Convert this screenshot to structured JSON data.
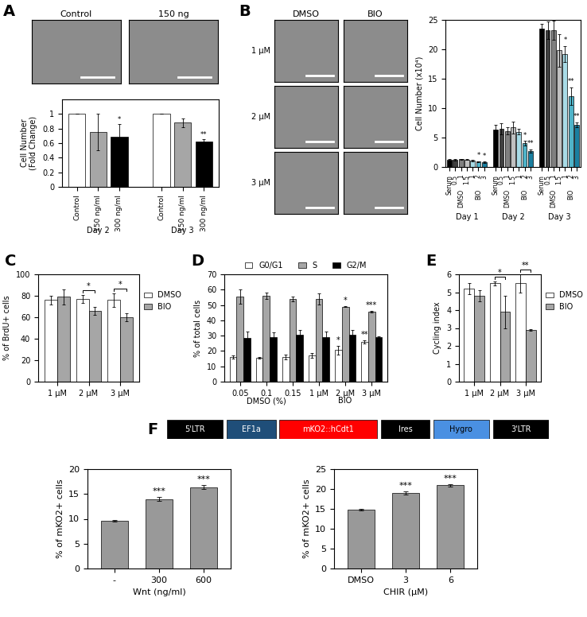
{
  "images": [
    {
      "panel": "A",
      "columns": [
        "Control",
        "150 ng"
      ]
    },
    {
      "panel": "B",
      "columns": [
        "DMSO",
        "BIO"
      ],
      "rows": [
        "1 μM",
        "2 μM",
        "3 μM"
      ]
    }
  ],
  "construct": {
    "panel": "F",
    "elements": [
      {
        "label": "5'LTR",
        "color": "#000000"
      },
      {
        "label": "EF1a",
        "color": "#1f4e79"
      },
      {
        "label": "mKO2::hCdt1",
        "color": "#ff0000"
      },
      {
        "label": "Ires",
        "color": "#000000"
      },
      {
        "label": "Hygro",
        "color": "#4a90e2"
      },
      {
        "label": "3'LTR",
        "color": "#000000"
      }
    ]
  },
  "chart_data": [
    {
      "type": "bar",
      "ylabel": "Cell Number\n(Fold Change)",
      "categories": [
        "Control",
        "150 ng/ml",
        "300 ng/ml"
      ],
      "colors": [
        "#ffffff",
        "#a6a6a6",
        "#000000"
      ],
      "groups": [
        {
          "label": "Day 2",
          "values": [
            1,
            0.75,
            0.69
          ],
          "errors": [
            0,
            0.25,
            0.17
          ],
          "significance": [
            null,
            null,
            "*"
          ]
        },
        {
          "label": "Day 3",
          "values": [
            1,
            0.88,
            0.62
          ],
          "errors": [
            0,
            0.06,
            0.03
          ],
          "significance": [
            null,
            null,
            "**"
          ]
        }
      ],
      "ylim": [
        0,
        1.2
      ],
      "yticks": [
        0,
        0.2,
        0.4,
        0.6,
        0.8,
        1
      ]
    },
    {
      "type": "bar",
      "ylabel": "Cell Number (x10⁴)",
      "categories": [
        "Serum",
        "0.5",
        "1",
        "1.5",
        "1",
        "2",
        "3"
      ],
      "colors": [
        "#000000",
        "#404040",
        "#808080",
        "#c0c0c0",
        "#a8dbe6",
        "#4fb3c8",
        "#1a7fa0"
      ],
      "subgroups": [
        {
          "label": "DMSO",
          "first": 1,
          "count": 3
        },
        {
          "label": "BIO",
          "first": 4,
          "count": 3
        }
      ],
      "groups": [
        {
          "label": "Day 1",
          "values": [
            1.2,
            1.2,
            1.3,
            1.25,
            1.1,
            0.9,
            0.8
          ],
          "errors": [
            0.1,
            0.1,
            0.1,
            0.1,
            0.1,
            0.1,
            0.1
          ],
          "significance": [
            null,
            null,
            null,
            null,
            null,
            "*",
            "*"
          ]
        },
        {
          "label": "Day 2",
          "values": [
            6.3,
            6.5,
            6.1,
            6.7,
            6.0,
            4.0,
            2.7
          ],
          "errors": [
            0.8,
            0.9,
            0.6,
            1.0,
            0.5,
            0.4,
            0.3
          ],
          "significance": [
            null,
            null,
            null,
            null,
            null,
            "*",
            "**"
          ]
        },
        {
          "label": "Day 3",
          "values": [
            23.5,
            23.2,
            23.2,
            19.8,
            19.2,
            12.0,
            7.2
          ],
          "errors": [
            0.8,
            1.5,
            1.6,
            2.8,
            1.4,
            1.5,
            0.4
          ],
          "significance": [
            null,
            null,
            null,
            null,
            "*",
            "**",
            "**"
          ]
        }
      ],
      "ylim": [
        0,
        25
      ],
      "yticks": [
        0,
        5,
        10,
        15,
        20,
        25
      ]
    },
    {
      "type": "bar",
      "panel": "C",
      "ylabel": "% of BrdU+ cells",
      "categories": [
        "1 μM",
        "2 μM",
        "3 μM"
      ],
      "series": [
        {
          "name": "DMSO",
          "color": "#ffffff",
          "values": [
            76,
            77,
            76
          ],
          "errors": [
            4,
            4,
            6
          ]
        },
        {
          "name": "BIO",
          "color": "#a6a6a6",
          "values": [
            79,
            66,
            60
          ],
          "errors": [
            7,
            4,
            4
          ]
        }
      ],
      "comparisons": [
        null,
        "*",
        "*"
      ],
      "legend": "right",
      "ylim": [
        0,
        100
      ],
      "yticks": [
        0,
        20,
        40,
        60,
        80,
        100
      ]
    },
    {
      "type": "bar",
      "panel": "D",
      "ylabel": "% of total cells",
      "categories": [
        "0.05",
        "0.1",
        "0.15",
        "1 μM",
        "2 μM",
        "3 μM"
      ],
      "subgroups": [
        {
          "label": "DMSO (%)",
          "first": 0,
          "count": 3
        },
        {
          "label": "BIO",
          "first": 3,
          "count": 3
        }
      ],
      "series": [
        {
          "name": "G0/G1",
          "color": "#ffffff",
          "values": [
            16,
            15.5,
            16,
            17,
            20.5,
            26
          ],
          "errors": [
            1,
            0.5,
            1.5,
            1.5,
            3,
            1
          ],
          "significance": [
            null,
            null,
            null,
            null,
            "*",
            "**"
          ]
        },
        {
          "name": "S",
          "color": "#a6a6a6",
          "values": [
            55.5,
            56,
            54,
            54,
            49,
            45.5
          ],
          "errors": [
            4.5,
            2,
            1.5,
            3.5,
            0.5,
            0.5
          ],
          "significance": [
            null,
            null,
            null,
            null,
            "*",
            "***"
          ]
        },
        {
          "name": "G2/M",
          "color": "#000000",
          "values": [
            28.5,
            29,
            30.5,
            29,
            30.5,
            29
          ],
          "errors": [
            4,
            3,
            3,
            3.5,
            3,
            0.5
          ]
        }
      ],
      "legend": "top",
      "ylim": [
        0,
        70
      ],
      "yticks": [
        0,
        10,
        20,
        30,
        40,
        50,
        60,
        70
      ]
    },
    {
      "type": "bar",
      "panel": "E",
      "ylabel": "Cycling index",
      "categories": [
        "1 μM",
        "2 μM",
        "3 μM"
      ],
      "series": [
        {
          "name": "DMSO",
          "color": "#ffffff",
          "values": [
            5.2,
            5.5,
            5.5
          ],
          "errors": [
            0.3,
            0.1,
            0.5
          ]
        },
        {
          "name": "BIO",
          "color": "#a6a6a6",
          "values": [
            4.8,
            3.9,
            2.9
          ],
          "errors": [
            0.3,
            0.9,
            0.05
          ]
        }
      ],
      "comparisons": [
        null,
        "*",
        "**"
      ],
      "legend": "right",
      "ylim": [
        0,
        6
      ],
      "yticks": [
        0,
        1,
        2,
        3,
        4,
        5,
        6
      ]
    },
    {
      "type": "bar",
      "ylabel": "% of mKO2+ cells",
      "xlabel": "Wnt (ng/ml)",
      "categories": [
        "-",
        "300",
        "600"
      ],
      "values": [
        9.6,
        14,
        16.4
      ],
      "errors": [
        0.2,
        0.4,
        0.4
      ],
      "significance": [
        null,
        "***",
        "***"
      ],
      "color": "#999999",
      "ylim": [
        0,
        20
      ],
      "yticks": [
        0,
        5,
        10,
        15,
        20
      ]
    },
    {
      "type": "bar",
      "ylabel": "% of mKO2+ cells",
      "xlabel": "CHIR (μM)",
      "categories": [
        "DMSO",
        "3",
        "6"
      ],
      "values": [
        14.8,
        19,
        21
      ],
      "errors": [
        0.2,
        0.4,
        0.3
      ],
      "significance": [
        null,
        "***",
        "***"
      ],
      "color": "#999999",
      "ylim": [
        0,
        25
      ],
      "yticks": [
        0,
        5,
        10,
        15,
        20,
        25
      ]
    }
  ]
}
